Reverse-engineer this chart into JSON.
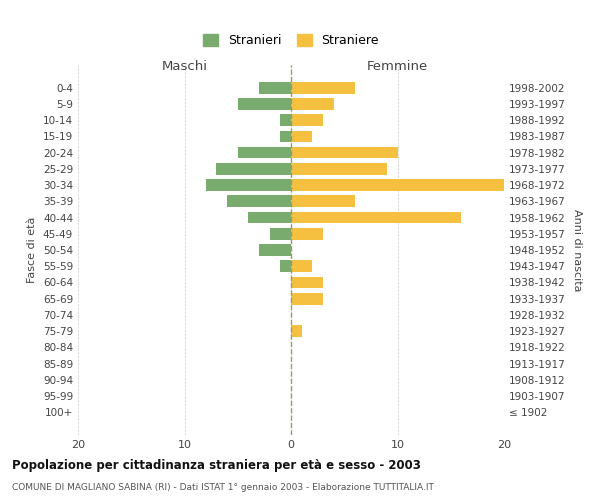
{
  "age_groups": [
    "0-4",
    "5-9",
    "10-14",
    "15-19",
    "20-24",
    "25-29",
    "30-34",
    "35-39",
    "40-44",
    "45-49",
    "50-54",
    "55-59",
    "60-64",
    "65-69",
    "70-74",
    "75-79",
    "80-84",
    "85-89",
    "90-94",
    "95-99",
    "100+"
  ],
  "birth_years": [
    "1998-2002",
    "1993-1997",
    "1988-1992",
    "1983-1987",
    "1978-1982",
    "1973-1977",
    "1968-1972",
    "1963-1967",
    "1958-1962",
    "1953-1957",
    "1948-1952",
    "1943-1947",
    "1938-1942",
    "1933-1937",
    "1928-1932",
    "1923-1927",
    "1918-1922",
    "1913-1917",
    "1908-1912",
    "1903-1907",
    "≤ 1902"
  ],
  "maschi": [
    3,
    5,
    1,
    1,
    5,
    7,
    8,
    6,
    4,
    2,
    3,
    1,
    0,
    0,
    0,
    0,
    0,
    0,
    0,
    0,
    0
  ],
  "femmine": [
    6,
    4,
    3,
    2,
    10,
    9,
    20,
    6,
    16,
    3,
    0,
    2,
    3,
    3,
    0,
    1,
    0,
    0,
    0,
    0,
    0
  ],
  "maschi_color": "#7aab6e",
  "femmine_color": "#f5c040",
  "bg_color": "#ffffff",
  "grid_color": "#cccccc",
  "dashed_line_color": "#999966",
  "title1": "Popolazione per cittadinanza straniera per età e sesso - 2003",
  "title2": "COMUNE DI MAGLIANO SABINA (RI) - Dati ISTAT 1° gennaio 2003 - Elaborazione TUTTITALIA.IT",
  "legend_maschi": "Stranieri",
  "legend_femmine": "Straniere",
  "xlabel_left": "Maschi",
  "xlabel_right": "Femmine",
  "ylabel_left": "Fasce di età",
  "ylabel_right": "Anni di nascita",
  "xlim": 20
}
